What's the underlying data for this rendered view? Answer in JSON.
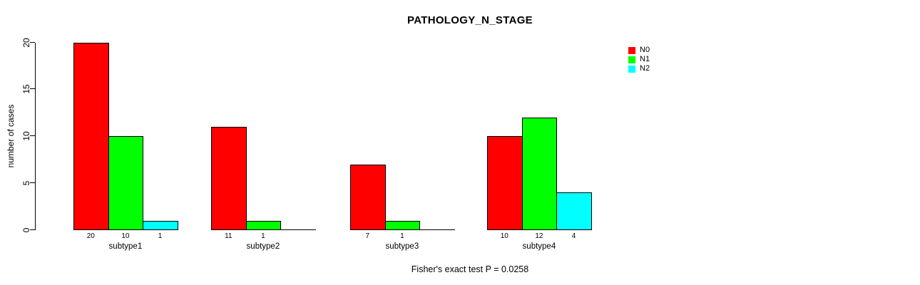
{
  "title": "PATHOLOGY_N_STAGE",
  "footer": "Fisher's exact test P = 0.0258",
  "ylabel": "number of cases",
  "chart_data": {
    "type": "bar",
    "grouped": true,
    "title": "PATHOLOGY_N_STAGE",
    "xlabel": "",
    "ylabel": "number of cases",
    "categories": [
      "subtype1",
      "subtype2",
      "subtype3",
      "subtype4"
    ],
    "series": [
      {
        "name": "N0",
        "color": "#ff0000",
        "values": [
          20,
          11,
          7,
          10
        ]
      },
      {
        "name": "N1",
        "color": "#00ff00",
        "values": [
          10,
          1,
          1,
          12
        ]
      },
      {
        "name": "N2",
        "color": "#00ffff",
        "values": [
          1,
          0,
          0,
          4
        ]
      }
    ],
    "bar_value_labels": [
      [
        "20",
        "10",
        "1"
      ],
      [
        "11",
        "1",
        ""
      ],
      [
        "7",
        "1",
        ""
      ],
      [
        "10",
        "12",
        "4"
      ]
    ],
    "ylim": [
      0,
      20
    ],
    "yticks": [
      0,
      5,
      10,
      15,
      20
    ],
    "grid": false,
    "legend_position": "top-right",
    "annotation": "Fisher's exact test P = 0.0258"
  }
}
